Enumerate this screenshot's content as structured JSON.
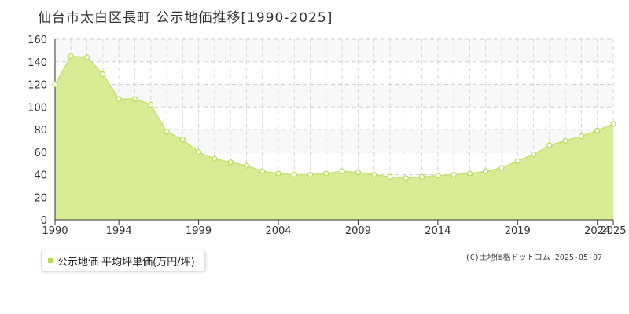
{
  "chart_data": {
    "type": "area",
    "title": "仙台市太白区長町 公示地価推移[1990-2025]",
    "xlabel": "",
    "ylabel": "",
    "x": [
      1990,
      1991,
      1992,
      1993,
      1994,
      1995,
      1996,
      1997,
      1998,
      1999,
      2000,
      2001,
      2002,
      2003,
      2004,
      2005,
      2006,
      2007,
      2008,
      2009,
      2010,
      2011,
      2012,
      2013,
      2014,
      2015,
      2016,
      2017,
      2018,
      2019,
      2020,
      2021,
      2022,
      2023,
      2024,
      2025
    ],
    "series": [
      {
        "name": "公示地価 平均坪単価(万円/坪)",
        "values": [
          120,
          145,
          144,
          129,
          107,
          107,
          102,
          78,
          71,
          60,
          54,
          51,
          48,
          43,
          41,
          40,
          40,
          41,
          43,
          42,
          40,
          38,
          37,
          38,
          39,
          40,
          41,
          43,
          46,
          52,
          58,
          66,
          70,
          74,
          79,
          85
        ]
      }
    ],
    "xticks": [
      "1990",
      "1994",
      "1999",
      "2004",
      "2009",
      "2014",
      "2019",
      "2024",
      "2025"
    ],
    "yticks": [
      0,
      20,
      40,
      60,
      80,
      100,
      120,
      140,
      160
    ],
    "xlim": [
      1990,
      2025
    ],
    "ylim": [
      0,
      160
    ],
    "grid": true,
    "legend_position": "bottom-left",
    "colors": {
      "fill": "#d8ec96",
      "line": "#c6e36e",
      "marker_edge": "#b7dc4c",
      "marker_fill": "#ffffff"
    }
  },
  "source_note": "(C)土地価格ドットコム 2025-05-07"
}
